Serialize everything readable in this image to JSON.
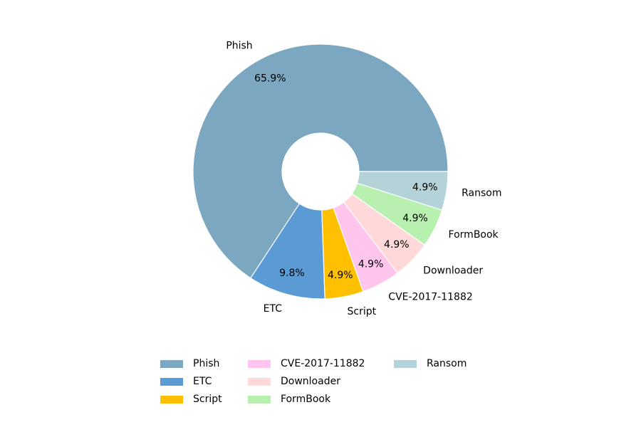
{
  "chart_data": {
    "type": "donut",
    "categories": [
      "Phish",
      "ETC",
      "Script",
      "CVE-2017-11882",
      "Downloader",
      "FormBook",
      "Ransom"
    ],
    "values": [
      65.9,
      9.8,
      4.9,
      4.9,
      4.9,
      4.9,
      4.9
    ],
    "value_labels": [
      "65.9%",
      "9.8%",
      "4.9%",
      "4.9%",
      "4.9%",
      "4.9%",
      "4.9%"
    ],
    "colors": [
      "#7ba7c0",
      "#5b9bd5",
      "#ffc000",
      "#ffc5ec",
      "#ffd9d9",
      "#b8f0b0",
      "#b3d3d9"
    ],
    "legend": "bottom"
  }
}
